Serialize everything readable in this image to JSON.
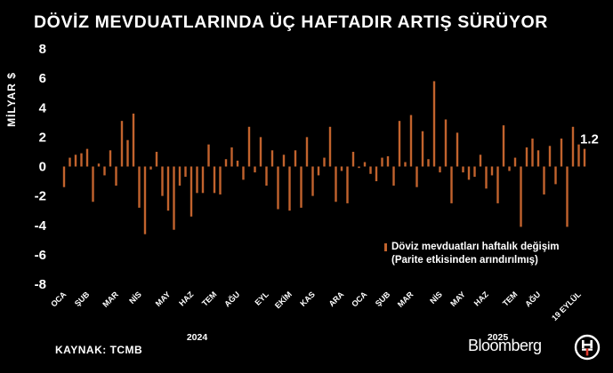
{
  "title": "DÖVİZ MEVDUATLARINDA ÜÇ HAFTADIR ARTIŞ SÜRÜYOR",
  "legend": {
    "line1": "Döviz mevduatları haftalık değişim",
    "line2": "(Parite etkisinden arındırılmış)"
  },
  "source": "KAYNAK: TCMB",
  "brand": "Bloomberg",
  "colors": {
    "bar": "#c2632d",
    "background": "#000000",
    "text": "#ffffff"
  },
  "chart_data": {
    "type": "bar",
    "ylabel": "MİLYAR $",
    "ylim": [
      -8,
      8
    ],
    "yticks": [
      8,
      6,
      4,
      2,
      0,
      -2,
      -4,
      -6,
      -8
    ],
    "xticks": [
      {
        "label": "OCA",
        "week": 1
      },
      {
        "label": "ŞUB",
        "week": 5
      },
      {
        "label": "MAR",
        "week": 10
      },
      {
        "label": "NİS",
        "week": 14
      },
      {
        "label": "MAY",
        "week": 19
      },
      {
        "label": "HAZ",
        "week": 23
      },
      {
        "label": "TEM",
        "week": 27
      },
      {
        "label": "AĞU",
        "week": 31
      },
      {
        "label": "EYL",
        "week": 36
      },
      {
        "label": "EKİM",
        "week": 40
      },
      {
        "label": "KAS",
        "week": 44
      },
      {
        "label": "ARA",
        "week": 49
      },
      {
        "label": "OCA",
        "week": 53
      },
      {
        "label": "ŞUB",
        "week": 57
      },
      {
        "label": "MAR",
        "week": 61
      },
      {
        "label": "NİS",
        "week": 66
      },
      {
        "label": "MAY",
        "week": 70
      },
      {
        "label": "HAZ",
        "week": 74
      },
      {
        "label": "TEM",
        "week": 79
      },
      {
        "label": "AĞU",
        "week": 83
      },
      {
        "label": "19 EYLÜL",
        "week": 90
      }
    ],
    "years": [
      {
        "label": "2024",
        "week": 24
      },
      {
        "label": "2025",
        "week": 76
      }
    ],
    "values": [
      -1.4,
      0.6,
      0.8,
      0.9,
      1.2,
      -2.4,
      0.2,
      -0.6,
      1.1,
      -1.3,
      3.1,
      1.8,
      3.6,
      -2.8,
      -4.6,
      -0.2,
      1.0,
      -2.0,
      -3.0,
      -4.3,
      -1.3,
      -0.7,
      -3.4,
      -1.8,
      -1.8,
      1.5,
      -1.8,
      -1.9,
      0.5,
      1.3,
      0.4,
      -0.9,
      2.7,
      -0.4,
      2.0,
      -1.3,
      1.1,
      -2.9,
      0.8,
      -3.0,
      1.1,
      -2.8,
      2.0,
      -2.0,
      -0.6,
      0.6,
      2.7,
      -2.4,
      -0.3,
      -2.5,
      1.0,
      -0.1,
      0.3,
      -0.5,
      -1.0,
      0.6,
      0.7,
      -1.3,
      3.1,
      0.3,
      3.5,
      -1.4,
      2.4,
      0.5,
      5.8,
      -0.4,
      3.2,
      -2.5,
      2.3,
      -0.4,
      -0.9,
      -0.7,
      0.8,
      -1.5,
      -0.6,
      -2.5,
      2.8,
      -0.3,
      0.6,
      -4.1,
      1.3,
      1.9,
      1.1,
      -1.9,
      1.4,
      -1.2,
      1.9,
      -4.1,
      2.7,
      1.5,
      1.2
    ],
    "last_value_label": "1.2"
  }
}
